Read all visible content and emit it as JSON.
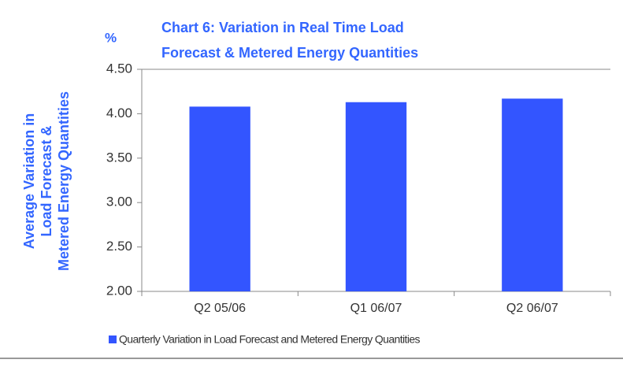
{
  "chart_data": {
    "type": "bar",
    "title": [
      "Chart 6: Variation in Real Time Load",
      "Forecast & Metered Energy Quantities"
    ],
    "y_unit": "%",
    "y_label": [
      "Average Variation in",
      "Load Forecast &",
      "Metered Energy Quantities"
    ],
    "categories": [
      "Q2 05/06",
      "Q1 06/07",
      "Q2 06/07"
    ],
    "series": [
      {
        "name": "Quarterly Variation in Load Forecast and Metered Energy Quantities",
        "color": "#3355ff",
        "values": [
          4.08,
          4.13,
          4.17
        ]
      }
    ],
    "ylim": [
      2,
      4.5
    ],
    "yticks": [
      {
        "value": 2,
        "label": "2.00"
      },
      {
        "value": 2.5,
        "label": "2.50"
      },
      {
        "value": 3,
        "label": "3.00"
      },
      {
        "value": 3.5,
        "label": "3.50"
      },
      {
        "value": 4,
        "label": "4.00"
      },
      {
        "value": 4.5,
        "label": "4.50"
      }
    ],
    "grid": false,
    "legend": "bottom"
  }
}
